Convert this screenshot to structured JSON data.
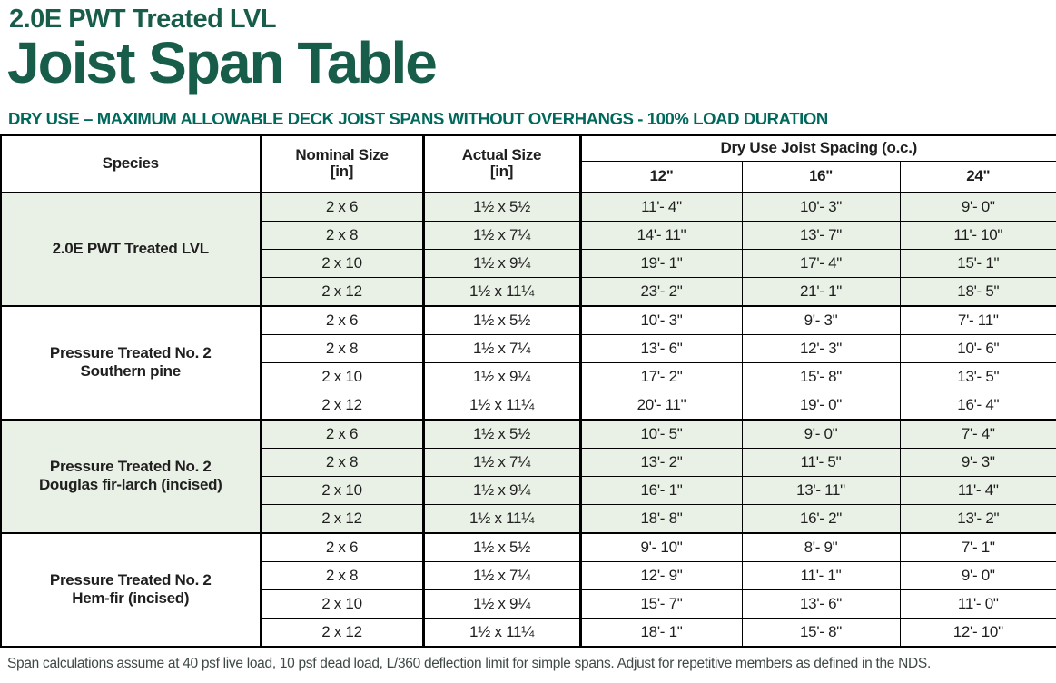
{
  "page": {
    "kicker": "2.0E PWT Treated LVL",
    "title": "Joist Span Table",
    "subtitle": "DRY USE – MAXIMUM ALLOWABLE DECK JOIST SPANS WITHOUT OVERHANGS - 100% LOAD DURATION",
    "footnote": "Span calculations assume at 40 psf live load, 10 psf dead load, L/360 deflection limit for simple spans. Adjust for repetitive members as defined in the NDS."
  },
  "colors": {
    "title_green": "#175d4a",
    "subtitle_teal": "#00695c",
    "shaded_row_green": "#e9f0e5",
    "border_black": "#000000"
  },
  "table": {
    "headers": {
      "species": "Species",
      "nominal_line1": "Nominal Size",
      "nominal_line2": "[in]",
      "actual_line1": "Actual Size",
      "actual_line2": "[in]",
      "spacing_group": "Dry Use Joist Spacing (o.c.)",
      "spacing": [
        "12\"",
        "16\"",
        "24\""
      ]
    },
    "groups": [
      {
        "species_line1": "2.0E PWT Treated LVL",
        "species_line2": "",
        "shaded": true,
        "rows": [
          {
            "nominal": "2 x 6",
            "actual": "1½ x 5½",
            "s12": "11'- 4\"",
            "s16": "10'- 3\"",
            "s24": "9'- 0\""
          },
          {
            "nominal": "2 x 8",
            "actual": "1½ x 7¼",
            "s12": "14'- 11\"",
            "s16": "13'- 7\"",
            "s24": "11'- 10\""
          },
          {
            "nominal": "2 x 10",
            "actual": "1½ x 9¼",
            "s12": "19'- 1\"",
            "s16": "17'- 4\"",
            "s24": "15'- 1\""
          },
          {
            "nominal": "2 x 12",
            "actual": "1½ x 11¼",
            "s12": "23'- 2\"",
            "s16": "21'- 1\"",
            "s24": "18'- 5\""
          }
        ]
      },
      {
        "species_line1": "Pressure Treated No. 2",
        "species_line2": "Southern pine",
        "shaded": false,
        "rows": [
          {
            "nominal": "2 x 6",
            "actual": "1½ x 5½",
            "s12": "10'- 3\"",
            "s16": "9'- 3\"",
            "s24": "7'- 11\""
          },
          {
            "nominal": "2 x 8",
            "actual": "1½ x 7¼",
            "s12": "13'- 6\"",
            "s16": "12'- 3\"",
            "s24": "10'- 6\""
          },
          {
            "nominal": "2 x 10",
            "actual": "1½ x 9¼",
            "s12": "17'- 2\"",
            "s16": "15'- 8\"",
            "s24": "13'- 5\""
          },
          {
            "nominal": "2 x 12",
            "actual": "1½ x 11¼",
            "s12": "20'- 11\"",
            "s16": "19'- 0\"",
            "s24": "16'- 4\""
          }
        ]
      },
      {
        "species_line1": "Pressure Treated No. 2",
        "species_line2": "Douglas fir-larch (incised)",
        "shaded": true,
        "rows": [
          {
            "nominal": "2 x 6",
            "actual": "1½ x 5½",
            "s12": "10'- 5\"",
            "s16": "9'- 0\"",
            "s24": "7'- 4\""
          },
          {
            "nominal": "2 x 8",
            "actual": "1½ x 7¼",
            "s12": "13'- 2\"",
            "s16": "11'- 5\"",
            "s24": "9'- 3\""
          },
          {
            "nominal": "2 x 10",
            "actual": "1½ x 9¼",
            "s12": "16'- 1\"",
            "s16": "13'- 11\"",
            "s24": "11'- 4\""
          },
          {
            "nominal": "2 x 12",
            "actual": "1½ x 11¼",
            "s12": "18'- 8\"",
            "s16": "16'- 2\"",
            "s24": "13'- 2\""
          }
        ]
      },
      {
        "species_line1": "Pressure Treated No. 2",
        "species_line2": "Hem-fir (incised)",
        "shaded": false,
        "rows": [
          {
            "nominal": "2 x 6",
            "actual": "1½ x 5½",
            "s12": "9'- 10\"",
            "s16": "8'- 9\"",
            "s24": "7'- 1\""
          },
          {
            "nominal": "2 x 8",
            "actual": "1½ x 7¼",
            "s12": "12'- 9\"",
            "s16": "11'- 1\"",
            "s24": "9'- 0\""
          },
          {
            "nominal": "2 x 10",
            "actual": "1½ x 9¼",
            "s12": "15'- 7\"",
            "s16": "13'- 6\"",
            "s24": "11'- 0\""
          },
          {
            "nominal": "2 x 12",
            "actual": "1½ x 11¼",
            "s12": "18'- 1\"",
            "s16": "15'- 8\"",
            "s24": "12'- 10\""
          }
        ]
      }
    ]
  }
}
